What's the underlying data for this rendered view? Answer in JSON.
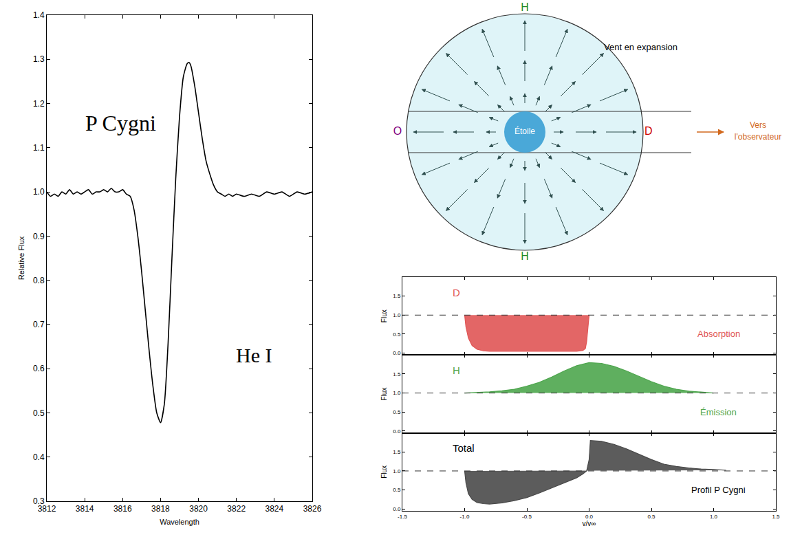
{
  "chart_data": [
    {
      "type": "line",
      "color": "#000000",
      "xlabel": "Wavelength",
      "ylabel": "Relative Flux",
      "annotations": [
        "P Cygni",
        "He I"
      ],
      "x": [
        3812.0,
        3812.2,
        3812.4,
        3812.6,
        3812.8,
        3813.0,
        3813.2,
        3813.4,
        3813.6,
        3813.8,
        3814.0,
        3814.2,
        3814.4,
        3814.6,
        3814.8,
        3815.0,
        3815.2,
        3815.4,
        3815.6,
        3815.8,
        3816.0,
        3816.2,
        3816.4,
        3816.6,
        3816.8,
        3817.0,
        3817.2,
        3817.4,
        3817.6,
        3817.8,
        3818.0,
        3818.2,
        3818.4,
        3818.6,
        3818.8,
        3819.0,
        3819.2,
        3819.4,
        3819.5,
        3819.6,
        3819.8,
        3820.0,
        3820.2,
        3820.4,
        3820.6,
        3820.8,
        3821.0,
        3821.2,
        3821.4,
        3821.6,
        3821.8,
        3822.0,
        3822.4,
        3822.8,
        3823.2,
        3823.6,
        3824.0,
        3824.4,
        3824.8,
        3825.2,
        3825.6,
        3826.0
      ],
      "values": [
        1.0,
        0.99,
        0.995,
        0.99,
        1.0,
        0.995,
        1.005,
        0.995,
        1.0,
        0.995,
        1.0,
        1.005,
        0.995,
        1.0,
        1.0,
        1.005,
        1.0,
        1.008,
        1.0,
        1.0,
        1.005,
        0.995,
        0.99,
        0.96,
        0.9,
        0.82,
        0.73,
        0.64,
        0.56,
        0.5,
        0.478,
        0.52,
        0.66,
        0.85,
        1.03,
        1.17,
        1.26,
        1.29,
        1.293,
        1.285,
        1.24,
        1.18,
        1.12,
        1.07,
        1.04,
        1.015,
        1.0,
        0.995,
        0.99,
        0.995,
        0.99,
        0.995,
        0.99,
        0.995,
        0.99,
        1.0,
        0.995,
        1.0,
        0.99,
        1.0,
        0.995,
        1.0
      ],
      "xlim": [
        3812,
        3826
      ],
      "ylim": [
        0.3,
        1.4
      ],
      "xticks": [
        3812,
        3814,
        3816,
        3818,
        3820,
        3822,
        3824,
        3826
      ],
      "yticks": [
        0.3,
        0.4,
        0.5,
        0.6,
        0.7,
        0.8,
        0.9,
        {
          "value": 1,
          "label": "1.0"
        },
        1.1,
        1.2,
        1.3,
        1.4
      ],
      "grid": false
    },
    {
      "type": "area",
      "color": "#e05555",
      "ylabel": "Flux",
      "annotations": [
        "D",
        "Absorption"
      ],
      "continuum": 1,
      "x": [
        -1.0,
        -0.99,
        -0.97,
        -0.94,
        -0.9,
        -0.85,
        -0.8,
        -0.5,
        -0.2,
        -0.1,
        -0.05,
        -0.03,
        -0.02,
        -0.01,
        0.0
      ],
      "values": [
        1.0,
        0.7,
        0.4,
        0.2,
        0.1,
        0.06,
        0.05,
        0.05,
        0.05,
        0.05,
        0.07,
        0.12,
        0.3,
        0.7,
        1.0
      ],
      "xlim": [
        -1.5,
        1.5
      ],
      "ylim": [
        -0.05,
        2.0
      ],
      "xticks": [
        -1.5,
        {
          "value": -1,
          "label": "-1.0"
        },
        -0.5,
        {
          "value": 0,
          "label": "0.0"
        },
        0.5,
        {
          "value": 1,
          "label": "1.0"
        },
        1.5
      ],
      "yticks": [
        {
          "value": 0,
          "label": "0.0"
        },
        0.5,
        {
          "value": 1,
          "label": "1.0"
        },
        1.5
      ],
      "tick_labels": "y",
      "grid": false
    },
    {
      "type": "area",
      "color": "#4ea64e",
      "ylabel": "Flux",
      "annotations": [
        "H",
        "Émission"
      ],
      "continuum": 1,
      "x": [
        -1.0,
        -0.9,
        -0.8,
        -0.7,
        -0.6,
        -0.5,
        -0.4,
        -0.3,
        -0.2,
        -0.1,
        0.0,
        0.1,
        0.2,
        0.3,
        0.4,
        0.5,
        0.6,
        0.7,
        0.8,
        0.9,
        1.0
      ],
      "values": [
        1.0,
        1.01,
        1.03,
        1.06,
        1.1,
        1.18,
        1.28,
        1.42,
        1.58,
        1.72,
        1.8,
        1.78,
        1.7,
        1.58,
        1.44,
        1.3,
        1.18,
        1.1,
        1.05,
        1.02,
        1.0
      ],
      "xlim": [
        -1.5,
        1.5
      ],
      "ylim": [
        -0.05,
        2.0
      ],
      "xticks": [
        -1.5,
        {
          "value": -1,
          "label": "-1.0"
        },
        -0.5,
        {
          "value": 0,
          "label": "0.0"
        },
        0.5,
        {
          "value": 1,
          "label": "1.0"
        },
        1.5
      ],
      "yticks": [
        {
          "value": 0,
          "label": "0.0"
        },
        0.5,
        {
          "value": 1,
          "label": "1.0"
        },
        1.5
      ],
      "tick_labels": "y",
      "grid": false
    },
    {
      "type": "area",
      "color": "#4a4a4a",
      "ylabel": "Flux",
      "xlabel": "v/v∞",
      "annotations": [
        "Total",
        "Profil P Cygni"
      ],
      "continuum": 1,
      "x": [
        -1.0,
        -0.99,
        -0.97,
        -0.94,
        -0.9,
        -0.85,
        -0.8,
        -0.75,
        -0.7,
        -0.6,
        -0.5,
        -0.4,
        -0.3,
        -0.2,
        -0.1,
        -0.05,
        -0.02,
        0.0,
        0.01,
        0.1,
        0.2,
        0.3,
        0.4,
        0.5,
        0.6,
        0.7,
        0.8,
        0.9,
        1.0,
        1.1
      ],
      "values": [
        1.0,
        0.7,
        0.4,
        0.25,
        0.17,
        0.14,
        0.13,
        0.14,
        0.16,
        0.22,
        0.3,
        0.42,
        0.55,
        0.68,
        0.82,
        0.92,
        1.0,
        1.3,
        1.8,
        1.78,
        1.7,
        1.58,
        1.44,
        1.3,
        1.18,
        1.12,
        1.08,
        1.05,
        1.04,
        1.02
      ],
      "xlim": [
        -1.5,
        1.5
      ],
      "ylim": [
        -0.05,
        2.0
      ],
      "xticks": [
        -1.5,
        {
          "value": -1,
          "label": "-1.0"
        },
        -0.5,
        {
          "value": 0,
          "label": "0.0"
        },
        0.5,
        {
          "value": 1,
          "label": "1.0"
        },
        1.5
      ],
      "yticks": [
        {
          "value": 0,
          "label": "0.0"
        },
        0.5,
        {
          "value": 1,
          "label": "1.0"
        },
        1.5
      ],
      "grid": false
    }
  ],
  "diagram": {
    "wind": "Vent en expansion",
    "star": "Étoile",
    "front": "D",
    "back": "O",
    "side": "H",
    "observer": "Vers l'observateur"
  }
}
